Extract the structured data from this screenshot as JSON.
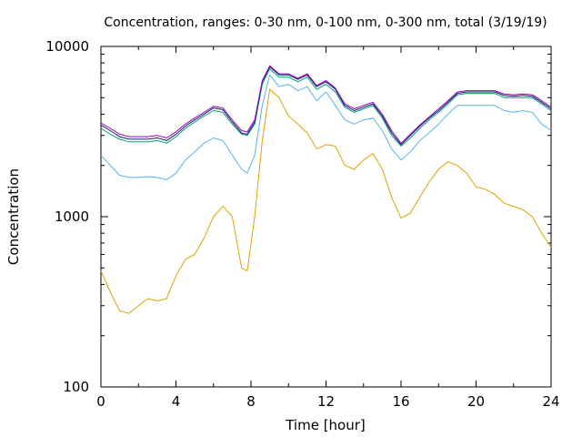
{
  "chart_data": {
    "type": "line",
    "title": "Concentration, ranges: 0-30 nm, 0-100 nm, 0-300 nm, total (3/19/19)",
    "xlabel": "Time [hour]",
    "ylabel": "Concentration",
    "xlim": [
      0,
      24
    ],
    "ylim": [
      100,
      10000
    ],
    "yscale": "log",
    "xticks": [
      "0",
      "4",
      "8",
      "12",
      "16",
      "20",
      "24"
    ],
    "yticks": [
      "100",
      "1000",
      "10000"
    ],
    "grid": false,
    "series": [
      {
        "color": "#e69f00",
        "x": [
          0,
          0.5,
          1,
          1.5,
          2,
          2.5,
          3,
          3.5,
          4,
          4.5,
          5,
          5.5,
          6,
          6.5,
          7,
          7.5,
          7.8,
          8.2,
          8.6,
          9,
          9.5,
          10,
          10.5,
          11,
          11.5,
          12,
          12.5,
          13,
          13.5,
          14,
          14.5,
          15,
          15.5,
          16,
          16.5,
          17,
          17.5,
          18,
          18.5,
          19,
          19.5,
          20,
          20.5,
          21,
          21.5,
          22,
          22.5,
          23,
          23.5,
          24
        ],
        "values": [
          480,
          360,
          280,
          270,
          300,
          330,
          320,
          330,
          450,
          560,
          600,
          750,
          1000,
          1150,
          1000,
          500,
          480,
          1000,
          2800,
          5600,
          5000,
          3900,
          3500,
          3100,
          2500,
          2650,
          2600,
          2000,
          1900,
          2150,
          2350,
          1900,
          1300,
          980,
          1050,
          1300,
          1600,
          1900,
          2100,
          2000,
          1800,
          1500,
          1450,
          1350,
          1200,
          1150,
          1100,
          1000,
          800,
          660
        ]
      },
      {
        "color": "#56b4e9",
        "x": [
          0,
          0.5,
          1,
          1.5,
          2,
          2.5,
          3,
          3.5,
          4,
          4.5,
          5,
          5.5,
          6,
          6.5,
          7,
          7.5,
          7.8,
          8.2,
          8.6,
          9,
          9.5,
          10,
          10.5,
          11,
          11.5,
          12,
          12.5,
          13,
          13.5,
          14,
          14.5,
          15,
          15.5,
          16,
          16.5,
          17,
          17.5,
          18,
          18.5,
          19,
          19.5,
          20,
          20.5,
          21,
          21.5,
          22,
          22.5,
          23,
          23.5,
          24
        ],
        "values": [
          2300,
          2000,
          1750,
          1700,
          1700,
          1720,
          1700,
          1650,
          1800,
          2150,
          2400,
          2700,
          2900,
          2800,
          2300,
          1900,
          1800,
          2300,
          4500,
          6800,
          5800,
          6000,
          5500,
          5800,
          4800,
          5400,
          4500,
          3700,
          3500,
          3700,
          3800,
          3200,
          2500,
          2150,
          2400,
          2800,
          3100,
          3500,
          4000,
          4500,
          4500,
          4500,
          4500,
          4500,
          4200,
          4100,
          4200,
          4100,
          3500,
          3200
        ]
      },
      {
        "color": "#009e73",
        "x": [
          0,
          0.5,
          1,
          1.5,
          2,
          2.5,
          3,
          3.5,
          4,
          4.5,
          5,
          5.5,
          6,
          6.5,
          7,
          7.5,
          7.8,
          8.2,
          8.6,
          9,
          9.5,
          10,
          10.5,
          11,
          11.5,
          12,
          12.5,
          13,
          13.5,
          14,
          14.5,
          15,
          15.5,
          16,
          16.5,
          17,
          17.5,
          18,
          18.5,
          19,
          19.5,
          20,
          20.5,
          21,
          21.5,
          22,
          22.5,
          23,
          23.5,
          24
        ],
        "values": [
          3300,
          3050,
          2850,
          2750,
          2750,
          2750,
          2800,
          2700,
          2950,
          3300,
          3600,
          3900,
          4200,
          4100,
          3500,
          3050,
          3000,
          3500,
          6000,
          7400,
          6600,
          6600,
          6200,
          6600,
          5600,
          6000,
          5400,
          4400,
          4100,
          4300,
          4500,
          3800,
          3000,
          2600,
          2900,
          3300,
          3700,
          4100,
          4600,
          5200,
          5300,
          5300,
          5300,
          5300,
          5000,
          5000,
          5000,
          5000,
          4600,
          4200
        ]
      },
      {
        "color": "#1f1f5f",
        "x": [
          0,
          0.5,
          1,
          1.5,
          2,
          2.5,
          3,
          3.5,
          4,
          4.5,
          5,
          5.5,
          6,
          6.5,
          7,
          7.5,
          7.8,
          8.2,
          8.6,
          9,
          9.5,
          10,
          10.5,
          11,
          11.5,
          12,
          12.5,
          13,
          13.5,
          14,
          14.5,
          15,
          15.5,
          16,
          16.5,
          17,
          17.5,
          18,
          18.5,
          19,
          19.5,
          20,
          20.5,
          21,
          21.5,
          22,
          22.5,
          23,
          23.5,
          24
        ],
        "values": [
          3450,
          3200,
          2950,
          2850,
          2850,
          2850,
          2900,
          2800,
          3050,
          3400,
          3700,
          4000,
          4350,
          4250,
          3600,
          3100,
          3050,
          3600,
          6200,
          7600,
          6800,
          6800,
          6400,
          6800,
          5800,
          6200,
          5600,
          4500,
          4200,
          4400,
          4600,
          3900,
          3100,
          2650,
          3000,
          3400,
          3800,
          4200,
          4700,
          5300,
          5400,
          5400,
          5400,
          5400,
          5150,
          5100,
          5150,
          5100,
          4700,
          4300
        ]
      },
      {
        "color": "#9400d3",
        "x": [
          0,
          0.5,
          1,
          1.5,
          2,
          2.5,
          3,
          3.5,
          4,
          4.5,
          5,
          5.5,
          6,
          6.5,
          7,
          7.5,
          7.8,
          8.2,
          8.6,
          9,
          9.5,
          10,
          10.5,
          11,
          11.5,
          12,
          12.5,
          13,
          13.5,
          14,
          14.5,
          15,
          15.5,
          16,
          16.5,
          17,
          17.5,
          18,
          18.5,
          19,
          19.5,
          20,
          20.5,
          21,
          21.5,
          22,
          22.5,
          23,
          23.5,
          24
        ],
        "values": [
          3550,
          3300,
          3050,
          2950,
          2950,
          2950,
          3000,
          2900,
          3150,
          3500,
          3800,
          4100,
          4450,
          4350,
          3700,
          3200,
          3150,
          3700,
          6300,
          7700,
          6900,
          6900,
          6500,
          6900,
          5900,
          6300,
          5700,
          4600,
          4300,
          4500,
          4700,
          4000,
          3200,
          2700,
          3050,
          3450,
          3850,
          4300,
          4800,
          5400,
          5500,
          5500,
          5500,
          5500,
          5250,
          5200,
          5250,
          5200,
          4800,
          4400
        ]
      }
    ]
  }
}
